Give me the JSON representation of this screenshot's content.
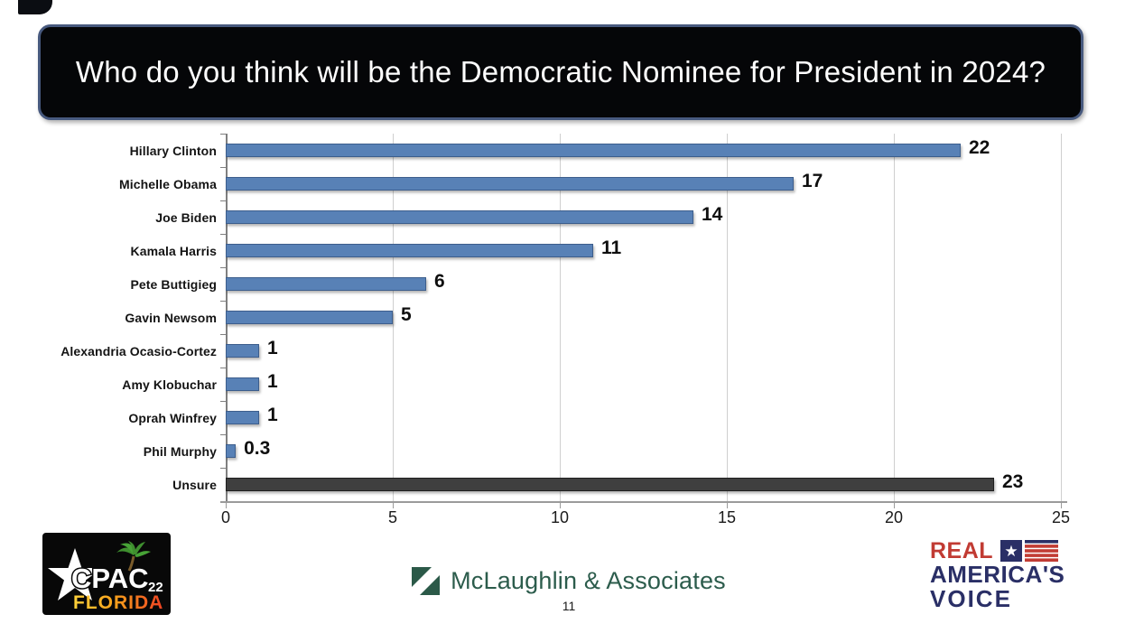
{
  "chart_data": {
    "type": "bar",
    "orientation": "horizontal",
    "title": "Who do you think will be the Democratic Nominee for President in 2024?",
    "categories": [
      "Hillary Clinton",
      "Michelle Obama",
      "Joe Biden",
      "Kamala Harris",
      "Pete Buttigieg",
      "Gavin Newsom",
      "Alexandria Ocasio-Cortez",
      "Amy Klobuchar",
      "Oprah Winfrey",
      "Phil Murphy",
      "Unsure"
    ],
    "values": [
      22,
      17,
      14,
      11,
      6,
      5,
      1,
      1,
      1,
      0.3,
      23
    ],
    "value_labels": [
      "22",
      "17",
      "14",
      "11",
      "6",
      "5",
      "1",
      "1",
      "1",
      "0.3",
      "23"
    ],
    "xlim": [
      0,
      25
    ],
    "xticks": [
      "0",
      "5",
      "10",
      "15",
      "20",
      "25"
    ],
    "grid": true,
    "legend": "none",
    "bar_color": "#5881B6",
    "bar_border_color": "#3D5E8C",
    "unsure_bar_color": "#3F3F3F",
    "unsure_bar_border_color": "#1F1F1F"
  },
  "footer": {
    "cpac_logo": {
      "name": "CPAC 22 Florida",
      "word1": "CPAC",
      "badge": "22",
      "word2": "FLORIDA"
    },
    "mclaughlin": {
      "name": "McLaughlin & Associates",
      "page_number": "11",
      "green": "#2C5C4C"
    },
    "rav": {
      "line1": "REAL",
      "line2": "AMERICA'S",
      "line3": "VOICE",
      "red": "#C13B33",
      "navy": "#2A2F66"
    }
  }
}
